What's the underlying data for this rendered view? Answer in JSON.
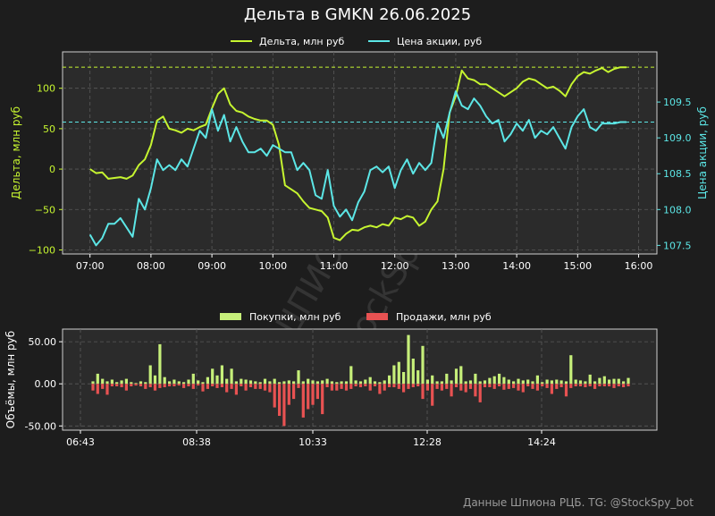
{
  "title": "Дельта в GMKN 26.06.2025",
  "footer": "Данные Шпиона РЦБ. TG: @StockSpy_bot",
  "watermark": [
    "ШПИОН РЦБ",
    "@StockSpy_bot"
  ],
  "colors": {
    "background": "#1d1d1d",
    "plot_bg": "#2b2b2b",
    "delta": "#c6f530",
    "price": "#5ce6e6",
    "buys": "#c6ef7a",
    "sells": "#e85252",
    "grid": "#5a5a5a",
    "text": "#ffffff"
  },
  "chart_data": [
    {
      "type": "line",
      "legend": [
        "Дельта, млн руб",
        "Цена акции, руб"
      ],
      "ylabel": "Дельта, млн руб",
      "ylabel_right": "Цена акции, руб",
      "x_ticks": [
        "07:00",
        "08:00",
        "09:00",
        "10:00",
        "11:00",
        "12:00",
        "13:00",
        "14:00",
        "15:00",
        "16:00"
      ],
      "x_range_hours": [
        6.55,
        16.3
      ],
      "ylim": [
        -105,
        145
      ],
      "y_ticks": [
        -100,
        -50,
        0,
        50,
        100
      ],
      "y_tick_labels": [
        "−100",
        "−50",
        "0",
        "50",
        "100"
      ],
      "ylim_right": [
        107.38,
        110.2
      ],
      "y_ticks_right": [
        107.5,
        108.0,
        108.5,
        109.0,
        109.5
      ],
      "y_tick_labels_right": [
        "107.5",
        "108.0",
        "108.5",
        "109.0",
        "109.5"
      ],
      "hlines": {
        "delta": 126,
        "price": 109.22
      },
      "grid": true,
      "legend_position": "top-center",
      "series": [
        {
          "name": "Дельта, млн руб",
          "axis": "left",
          "x": [
            7.0,
            7.1,
            7.2,
            7.3,
            7.4,
            7.5,
            7.6,
            7.7,
            7.8,
            7.9,
            8.0,
            8.1,
            8.2,
            8.3,
            8.4,
            8.5,
            8.6,
            8.7,
            8.8,
            8.9,
            9.0,
            9.1,
            9.2,
            9.3,
            9.4,
            9.5,
            9.6,
            9.7,
            9.8,
            9.9,
            10.0,
            10.1,
            10.2,
            10.3,
            10.4,
            10.5,
            10.6,
            10.7,
            10.8,
            10.9,
            11.0,
            11.1,
            11.2,
            11.3,
            11.4,
            11.5,
            11.6,
            11.7,
            11.8,
            11.9,
            12.0,
            12.1,
            12.2,
            12.3,
            12.4,
            12.5,
            12.6,
            12.7,
            12.8,
            12.9,
            13.0,
            13.1,
            13.2,
            13.3,
            13.4,
            13.5,
            13.6,
            13.7,
            13.8,
            13.9,
            14.0,
            14.1,
            14.2,
            14.3,
            14.4,
            14.5,
            14.6,
            14.7,
            14.8,
            14.9,
            15.0,
            15.1,
            15.2,
            15.3,
            15.4,
            15.5,
            15.6,
            15.7,
            15.8
          ],
          "values": [
            0,
            -5,
            -4,
            -12,
            -11,
            -10,
            -12,
            -8,
            5,
            12,
            30,
            60,
            65,
            50,
            48,
            45,
            50,
            48,
            52,
            55,
            75,
            93,
            100,
            80,
            72,
            70,
            65,
            62,
            60,
            60,
            55,
            30,
            -20,
            -25,
            -30,
            -40,
            -48,
            -50,
            -52,
            -60,
            -85,
            -88,
            -80,
            -75,
            -76,
            -72,
            -70,
            -72,
            -68,
            -70,
            -60,
            -62,
            -58,
            -60,
            -70,
            -65,
            -50,
            -40,
            0,
            70,
            90,
            122,
            112,
            110,
            105,
            105,
            100,
            95,
            90,
            95,
            100,
            108,
            112,
            110,
            105,
            100,
            102,
            97,
            90,
            105,
            115,
            120,
            118,
            122,
            125,
            120,
            124,
            126,
            126
          ]
        },
        {
          "name": "Цена акции, руб",
          "axis": "right",
          "x": [
            7.0,
            7.1,
            7.2,
            7.3,
            7.4,
            7.5,
            7.6,
            7.7,
            7.8,
            7.9,
            8.0,
            8.1,
            8.2,
            8.3,
            8.4,
            8.5,
            8.6,
            8.7,
            8.8,
            8.9,
            9.0,
            9.1,
            9.2,
            9.3,
            9.4,
            9.5,
            9.6,
            9.7,
            9.8,
            9.9,
            10.0,
            10.1,
            10.2,
            10.3,
            10.4,
            10.5,
            10.6,
            10.7,
            10.8,
            10.9,
            11.0,
            11.1,
            11.2,
            11.3,
            11.4,
            11.5,
            11.6,
            11.7,
            11.8,
            11.9,
            12.0,
            12.1,
            12.2,
            12.3,
            12.4,
            12.5,
            12.6,
            12.7,
            12.8,
            12.9,
            13.0,
            13.1,
            13.2,
            13.3,
            13.4,
            13.5,
            13.6,
            13.7,
            13.8,
            13.9,
            14.0,
            14.1,
            14.2,
            14.3,
            14.4,
            14.5,
            14.6,
            14.7,
            14.8,
            14.9,
            15.0,
            15.1,
            15.2,
            15.3,
            15.4,
            15.5,
            15.6,
            15.7,
            15.8
          ],
          "values": [
            107.65,
            107.5,
            107.6,
            107.8,
            107.8,
            107.88,
            107.75,
            107.62,
            108.15,
            108.0,
            108.3,
            108.7,
            108.55,
            108.62,
            108.55,
            108.7,
            108.6,
            108.85,
            109.1,
            109.0,
            109.4,
            109.1,
            109.32,
            108.95,
            109.15,
            108.95,
            108.8,
            108.8,
            108.85,
            108.75,
            108.9,
            108.85,
            108.8,
            108.8,
            108.55,
            108.65,
            108.55,
            108.2,
            108.15,
            108.55,
            108.05,
            107.9,
            108.0,
            107.85,
            108.1,
            108.25,
            108.55,
            108.6,
            108.52,
            108.6,
            108.3,
            108.55,
            108.7,
            108.5,
            108.65,
            108.55,
            108.65,
            109.2,
            109.0,
            109.35,
            109.65,
            109.45,
            109.4,
            109.55,
            109.45,
            109.3,
            109.2,
            109.25,
            108.95,
            109.05,
            109.2,
            109.1,
            109.25,
            109.0,
            109.1,
            109.05,
            109.15,
            109.0,
            108.85,
            109.15,
            109.3,
            109.4,
            109.15,
            109.1,
            109.2,
            109.2,
            109.2,
            109.22,
            109.22
          ]
        }
      ]
    },
    {
      "type": "bar",
      "legend": [
        "Покупки, млн руб",
        "Продажи, млн руб"
      ],
      "ylabel": "Объёмы, млн руб",
      "ylim": [
        -55,
        65
      ],
      "y_ticks": [
        -50,
        0,
        50
      ],
      "y_tick_labels": [
        "-50.00",
        "0.00",
        "50.00"
      ],
      "x_ticks": [
        "06:43",
        "08:38",
        "10:33",
        "12:28",
        "14:24"
      ],
      "grid": true,
      "legend_position": "top-center",
      "series": [
        {
          "name": "Покупки, млн руб",
          "values": [
            3,
            12,
            6,
            3,
            5,
            2,
            4,
            6,
            2,
            1,
            3,
            2,
            22,
            10,
            47,
            8,
            3,
            5,
            3,
            2,
            5,
            12,
            4,
            2,
            8,
            18,
            10,
            22,
            6,
            18,
            3,
            6,
            5,
            4,
            3,
            2,
            6,
            3,
            6,
            2,
            3,
            4,
            3,
            16,
            3,
            6,
            4,
            3,
            4,
            6,
            3,
            2,
            3,
            3,
            21,
            4,
            3,
            5,
            8,
            3,
            2,
            4,
            10,
            22,
            26,
            14,
            58,
            30,
            16,
            45,
            5,
            10,
            3,
            3,
            12,
            4,
            18,
            21,
            3,
            4,
            12,
            3,
            4,
            7,
            9,
            12,
            8,
            5,
            3,
            6,
            4,
            5,
            3,
            10,
            2,
            5,
            4,
            5,
            4,
            3,
            34,
            5,
            4,
            3,
            11,
            3,
            7,
            9,
            5,
            6,
            6,
            3,
            7
          ]
        },
        {
          "name": "Продажи, млн руб",
          "values": [
            -8,
            -12,
            -6,
            -13,
            -3,
            -3,
            -4,
            -8,
            -3,
            -2,
            -3,
            -6,
            -4,
            -8,
            -5,
            -4,
            -3,
            -3,
            -2,
            -5,
            -3,
            -6,
            -2,
            -9,
            -6,
            -3,
            -5,
            -4,
            -10,
            -6,
            -13,
            -3,
            -8,
            -4,
            -6,
            -6,
            -8,
            -10,
            -28,
            -38,
            -50,
            -25,
            -18,
            -5,
            -40,
            -30,
            -25,
            -18,
            -36,
            -4,
            -8,
            -8,
            -6,
            -8,
            -6,
            -3,
            -4,
            -3,
            -8,
            -3,
            -12,
            -8,
            -4,
            -4,
            -6,
            -10,
            -6,
            -4,
            -3,
            -18,
            -8,
            -26,
            -6,
            -8,
            -6,
            -15,
            -4,
            -8,
            -10,
            -6,
            -15,
            -22,
            -4,
            -4,
            -6,
            -3,
            -7,
            -6,
            -5,
            -8,
            -10,
            -3,
            -6,
            -8,
            -3,
            -5,
            -12,
            -6,
            -4,
            -15,
            -5,
            -3,
            -3,
            -4,
            -3,
            -6,
            -3,
            -3,
            -3,
            -5,
            -3,
            -4,
            -3
          ]
        }
      ]
    }
  ]
}
